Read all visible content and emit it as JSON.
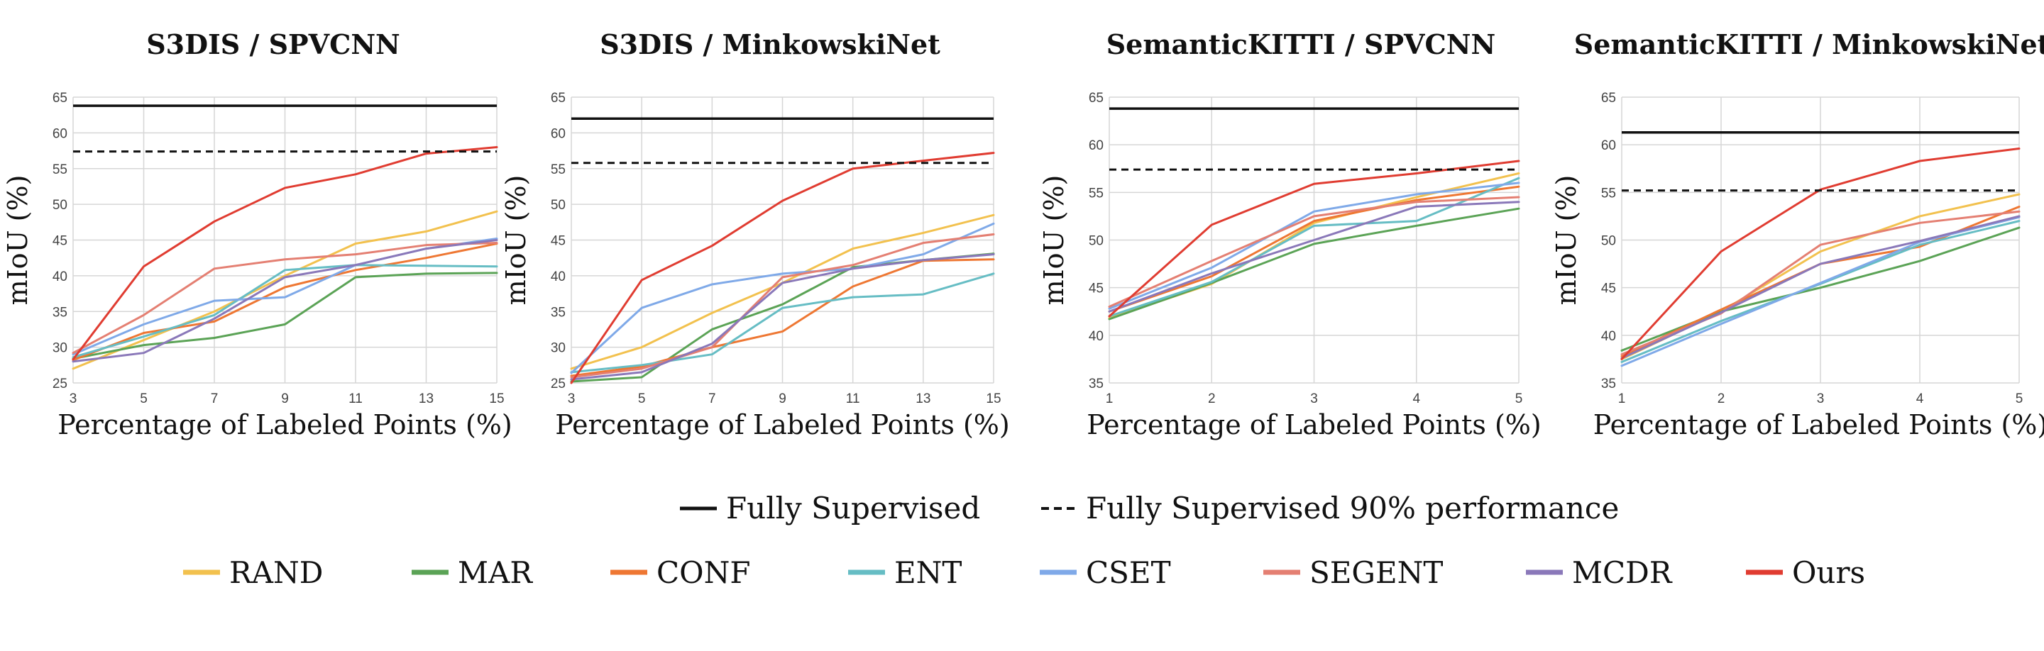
{
  "chart_data": [
    {
      "type": "line",
      "title": "S3DIS / SPVCNN",
      "xlabel": "Percentage of Labeled Points (%)",
      "ylabel": "mIoU (%)",
      "x": [
        3,
        5,
        7,
        9,
        11,
        13,
        15
      ],
      "xticks": [
        3,
        5,
        7,
        9,
        11,
        13,
        15
      ],
      "yticks": [
        25,
        30,
        35,
        40,
        45,
        50,
        55,
        60,
        65
      ],
      "xlim": [
        3,
        15
      ],
      "ylim": [
        25,
        65
      ],
      "grid": true,
      "reference_lines": [
        {
          "name": "Fully Supervised",
          "value": 63.8,
          "style": "solid"
        },
        {
          "name": "Fully Supervised 90% performance",
          "value": 57.4,
          "style": "dashed"
        }
      ],
      "series": [
        {
          "name": "RAND",
          "color": "#F2C14E",
          "values": [
            27.0,
            31.0,
            35.0,
            40.0,
            44.5,
            46.2,
            49.0
          ]
        },
        {
          "name": "MAR",
          "color": "#5BA356",
          "values": [
            28.4,
            30.3,
            31.3,
            33.2,
            39.8,
            40.3,
            40.4
          ]
        },
        {
          "name": "CONF",
          "color": "#EE7733",
          "values": [
            28.2,
            32.0,
            33.6,
            38.4,
            40.8,
            42.5,
            44.5
          ]
        },
        {
          "name": "ENT",
          "color": "#66BDC4",
          "values": [
            28.6,
            31.5,
            34.5,
            40.8,
            41.5,
            41.4,
            41.3
          ]
        },
        {
          "name": "CSET",
          "color": "#7FA9E8",
          "values": [
            29.0,
            33.2,
            36.5,
            37.0,
            41.5,
            43.8,
            45.2
          ]
        },
        {
          "name": "SEGENT",
          "color": "#E47F72",
          "values": [
            29.2,
            34.5,
            41.0,
            42.3,
            43.0,
            44.3,
            44.6
          ]
        },
        {
          "name": "MCDR",
          "color": "#8A78B9",
          "values": [
            28.0,
            29.2,
            34.0,
            39.8,
            41.5,
            43.8,
            45.0
          ]
        },
        {
          "name": "Ours",
          "color": "#E03C31",
          "values": [
            28.3,
            41.3,
            47.6,
            52.3,
            54.2,
            57.1,
            58.0
          ]
        }
      ]
    },
    {
      "type": "line",
      "title": "S3DIS / MinkowskiNet",
      "xlabel": "Percentage of Labeled Points (%)",
      "ylabel": "mIoU (%)",
      "x": [
        3,
        5,
        7,
        9,
        11,
        13,
        15
      ],
      "xticks": [
        3,
        5,
        7,
        9,
        11,
        13,
        15
      ],
      "yticks": [
        25,
        30,
        35,
        40,
        45,
        50,
        55,
        60,
        65
      ],
      "xlim": [
        3,
        15
      ],
      "ylim": [
        25,
        65
      ],
      "grid": true,
      "reference_lines": [
        {
          "name": "Fully Supervised",
          "value": 62.0,
          "style": "solid"
        },
        {
          "name": "Fully Supervised 90% performance",
          "value": 55.8,
          "style": "dashed"
        }
      ],
      "series": [
        {
          "name": "RAND",
          "color": "#F2C14E",
          "values": [
            27.0,
            30.0,
            34.8,
            39.0,
            43.8,
            46.0,
            48.5
          ]
        },
        {
          "name": "MAR",
          "color": "#5BA356",
          "values": [
            25.2,
            25.8,
            32.5,
            36.0,
            41.2,
            42.2,
            43.1
          ]
        },
        {
          "name": "CONF",
          "color": "#EE7733",
          "values": [
            26.0,
            27.3,
            30.0,
            32.2,
            38.5,
            42.1,
            42.3
          ]
        },
        {
          "name": "ENT",
          "color": "#66BDC4",
          "values": [
            26.5,
            27.5,
            29.0,
            35.5,
            37.0,
            37.4,
            40.3
          ]
        },
        {
          "name": "CSET",
          "color": "#7FA9E8",
          "values": [
            26.4,
            35.5,
            38.8,
            40.3,
            41.0,
            43.0,
            47.3
          ]
        },
        {
          "name": "SEGENT",
          "color": "#E47F72",
          "values": [
            25.8,
            27.0,
            30.0,
            39.8,
            41.5,
            44.6,
            45.8
          ]
        },
        {
          "name": "MCDR",
          "color": "#8A78B9",
          "values": [
            25.5,
            26.5,
            30.5,
            39.0,
            41.0,
            42.2,
            43.0
          ]
        },
        {
          "name": "Ours",
          "color": "#E03C31",
          "values": [
            25.0,
            39.4,
            44.2,
            50.5,
            55.0,
            56.1,
            57.2
          ]
        }
      ]
    },
    {
      "type": "line",
      "title": "SemanticKITTI / SPVCNN",
      "xlabel": "Percentage of Labeled Points (%)",
      "ylabel": "mIoU (%)",
      "x": [
        1,
        2,
        3,
        4,
        5
      ],
      "xticks": [
        1,
        2,
        3,
        4,
        5
      ],
      "yticks": [
        35,
        40,
        45,
        50,
        55,
        60,
        65
      ],
      "xlim": [
        1,
        5
      ],
      "ylim": [
        35,
        65
      ],
      "grid": true,
      "reference_lines": [
        {
          "name": "Fully Supervised",
          "value": 63.8,
          "style": "solid"
        },
        {
          "name": "Fully Supervised 90% performance",
          "value": 57.4,
          "style": "dashed"
        }
      ],
      "series": [
        {
          "name": "RAND",
          "color": "#F2C14E",
          "values": [
            41.8,
            45.4,
            51.8,
            54.5,
            57.0
          ]
        },
        {
          "name": "MAR",
          "color": "#5BA356",
          "values": [
            41.7,
            45.5,
            49.6,
            51.5,
            53.3
          ]
        },
        {
          "name": "CONF",
          "color": "#EE7733",
          "values": [
            42.5,
            46.2,
            52.0,
            54.2,
            55.6
          ]
        },
        {
          "name": "ENT",
          "color": "#66BDC4",
          "values": [
            42.0,
            45.6,
            51.5,
            52.0,
            56.5
          ]
        },
        {
          "name": "CSET",
          "color": "#7FA9E8",
          "values": [
            42.8,
            47.1,
            53.0,
            54.8,
            56.0
          ]
        },
        {
          "name": "SEGENT",
          "color": "#E47F72",
          "values": [
            43.0,
            47.8,
            52.5,
            54.0,
            54.5
          ]
        },
        {
          "name": "MCDR",
          "color": "#8A78B9",
          "values": [
            42.5,
            46.5,
            50.0,
            53.5,
            54.0
          ]
        },
        {
          "name": "Ours",
          "color": "#E03C31",
          "values": [
            42.0,
            51.6,
            55.9,
            57.0,
            58.3
          ]
        }
      ]
    },
    {
      "type": "line",
      "title": "SemanticKITTI / MinkowskiNet",
      "xlabel": "Percentage of Labeled Points (%)",
      "ylabel": "mIoU (%)",
      "x": [
        1,
        2,
        3,
        4,
        5
      ],
      "xticks": [
        1,
        2,
        3,
        4,
        5
      ],
      "yticks": [
        35,
        40,
        45,
        50,
        55,
        60,
        65
      ],
      "xlim": [
        1,
        5
      ],
      "ylim": [
        35,
        65
      ],
      "grid": true,
      "reference_lines": [
        {
          "name": "Fully Supervised",
          "value": 61.3,
          "style": "solid"
        },
        {
          "name": "Fully Supervised 90% performance",
          "value": 55.2,
          "style": "dashed"
        }
      ],
      "series": [
        {
          "name": "RAND",
          "color": "#F2C14E",
          "values": [
            37.5,
            42.5,
            48.8,
            52.5,
            54.8
          ]
        },
        {
          "name": "MAR",
          "color": "#5BA356",
          "values": [
            38.4,
            42.5,
            45.0,
            47.8,
            51.3
          ]
        },
        {
          "name": "CONF",
          "color": "#EE7733",
          "values": [
            37.8,
            42.7,
            47.5,
            49.3,
            53.5
          ]
        },
        {
          "name": "ENT",
          "color": "#66BDC4",
          "values": [
            37.2,
            41.5,
            45.4,
            49.5,
            52.0
          ]
        },
        {
          "name": "CSET",
          "color": "#7FA9E8",
          "values": [
            36.8,
            41.2,
            45.5,
            49.8,
            52.4
          ]
        },
        {
          "name": "SEGENT",
          "color": "#E47F72",
          "values": [
            38.0,
            42.3,
            49.5,
            51.8,
            53.0
          ]
        },
        {
          "name": "MCDR",
          "color": "#8A78B9",
          "values": [
            37.6,
            42.4,
            47.5,
            49.9,
            52.5
          ]
        },
        {
          "name": "Ours",
          "color": "#E03C31",
          "values": [
            37.5,
            48.8,
            55.3,
            58.3,
            59.6
          ]
        }
      ]
    }
  ],
  "legend": {
    "reference": [
      {
        "label": "Fully Supervised",
        "style": "solid",
        "color": "#111111"
      },
      {
        "label": "Fully Supervised 90% performance",
        "style": "dashed",
        "color": "#111111"
      }
    ],
    "methods": [
      {
        "label": "RAND",
        "color": "#F2C14E"
      },
      {
        "label": "MAR",
        "color": "#5BA356"
      },
      {
        "label": "CONF",
        "color": "#EE7733"
      },
      {
        "label": "ENT",
        "color": "#66BDC4"
      },
      {
        "label": "CSET",
        "color": "#7FA9E8"
      },
      {
        "label": "SEGENT",
        "color": "#E47F72"
      },
      {
        "label": "MCDR",
        "color": "#8A78B9"
      },
      {
        "label": "Ours",
        "color": "#E03C31"
      }
    ]
  }
}
